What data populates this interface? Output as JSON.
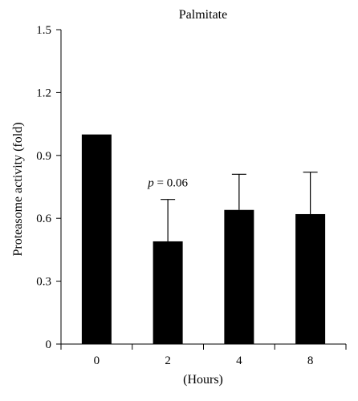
{
  "chart_data": {
    "type": "bar",
    "title": "Palmitate",
    "xlabel": "(Hours)",
    "ylabel": "Proteasome activity (fold)",
    "categories": [
      "0",
      "2",
      "4",
      "8"
    ],
    "values": [
      1.0,
      0.49,
      0.64,
      0.62
    ],
    "errors": [
      0.0,
      0.2,
      0.17,
      0.2
    ],
    "ylim": [
      0,
      1.5
    ],
    "yticks": [
      "0",
      "0.3",
      "0.6",
      "0.9",
      "1.2",
      "1.5"
    ],
    "annotations": [
      {
        "category": "2",
        "italic": "p",
        "text": " = 0.06"
      }
    ],
    "bar_color": "#000000",
    "grid": false
  }
}
